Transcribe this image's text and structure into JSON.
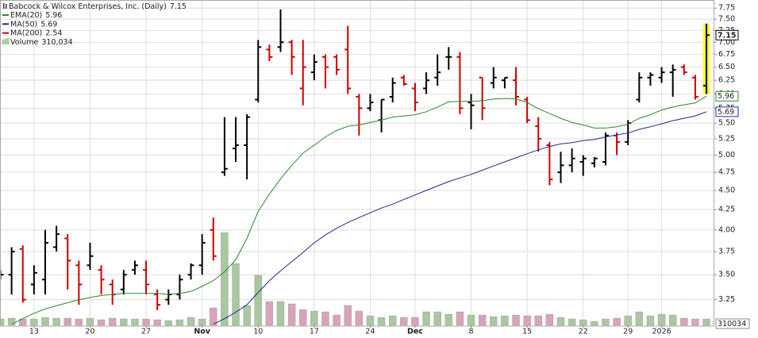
{
  "chart_data": {
    "type": "ohlc",
    "title": "Babcock & Wilcox Enterprises, Inc. (Daily)",
    "log_scale": true,
    "grid": true,
    "legend": "top-left",
    "ylim": [
      3.01,
      7.94
    ],
    "yticks": [
      3.25,
      {
        "value": 3.5,
        "label": "3.50"
      },
      3.75,
      {
        "value": 4,
        "label": "4.00"
      },
      4.25,
      {
        "value": 4.5,
        "label": "4.50"
      },
      4.75,
      {
        "value": 5,
        "label": "5.00"
      },
      5.25,
      {
        "value": 5.5,
        "label": "5.50"
      },
      5.75,
      {
        "value": 6,
        "label": "6.00"
      },
      6.25,
      {
        "value": 6.5,
        "label": "6.50"
      },
      6.75,
      {
        "value": 7,
        "label": "7.00"
      },
      7.25,
      {
        "value": 7.5,
        "label": "7.50"
      },
      7.75
    ],
    "categories": [
      null,
      null,
      null,
      "13",
      null,
      null,
      null,
      null,
      "20",
      null,
      null,
      null,
      null,
      "27",
      null,
      null,
      null,
      null,
      "Nov",
      null,
      null,
      null,
      null,
      "10",
      null,
      null,
      null,
      null,
      "17",
      null,
      null,
      null,
      null,
      "24",
      null,
      null,
      null,
      "Dec",
      null,
      null,
      null,
      null,
      "8",
      null,
      null,
      null,
      null,
      "15",
      null,
      null,
      null,
      null,
      "22",
      null,
      null,
      null,
      "29",
      null,
      null,
      "2026",
      null,
      null,
      null,
      null
    ],
    "up_color": "#000000",
    "down_color": "#cc0000",
    "highlight_color": "#ffff33",
    "ohlc": {
      "open": [
        3.5,
        3.5,
        3.78,
        3.4,
        3.45,
        3.8,
        3.9,
        3.6,
        3.6,
        3.55,
        3.4,
        3.35,
        3.55,
        3.55,
        3.3,
        3.25,
        3.3,
        3.5,
        3.6,
        4.0,
        4.75,
        5.1,
        5.15,
        5.9,
        6.85,
        6.9,
        7.0,
        6.1,
        6.4,
        6.7,
        6.7,
        6.85,
        5.95,
        5.75,
        5.55,
        5.95,
        6.3,
        6.1,
        6.1,
        6.3,
        6.7,
        6.7,
        5.85,
        6.3,
        6.2,
        6.25,
        6.25,
        5.9,
        5.45,
        5.15,
        4.75,
        4.85,
        4.9,
        4.88,
        4.9,
        5.3,
        5.2,
        5.9,
        6.3,
        6.3,
        6.4,
        6.5,
        6.3,
        6.15
      ],
      "high": [
        3.55,
        3.8,
        3.82,
        3.6,
        4.0,
        4.05,
        3.95,
        3.65,
        3.85,
        3.6,
        3.45,
        3.55,
        3.65,
        3.65,
        3.35,
        3.35,
        3.5,
        3.62,
        3.95,
        4.15,
        5.6,
        5.6,
        5.65,
        7.05,
        6.95,
        7.72,
        7.05,
        7.05,
        6.75,
        6.75,
        6.75,
        7.35,
        6.0,
        6.0,
        5.9,
        6.3,
        6.35,
        6.2,
        6.4,
        6.75,
        6.9,
        6.8,
        6.0,
        6.3,
        6.5,
        6.3,
        6.5,
        5.95,
        5.6,
        5.2,
        5.05,
        5.1,
        5.0,
        4.97,
        5.35,
        5.35,
        5.55,
        6.4,
        6.4,
        6.5,
        6.55,
        6.55,
        6.35,
        7.4
      ],
      "low": [
        3.45,
        3.3,
        3.22,
        3.3,
        3.3,
        3.75,
        3.35,
        3.2,
        3.55,
        3.3,
        3.2,
        3.3,
        3.5,
        3.3,
        3.15,
        3.2,
        3.25,
        3.45,
        3.5,
        3.65,
        4.7,
        4.9,
        4.65,
        5.85,
        6.62,
        6.8,
        6.35,
        5.8,
        6.25,
        6.1,
        6.35,
        6.0,
        5.3,
        5.7,
        5.35,
        5.85,
        6.15,
        5.7,
        6.0,
        6.15,
        6.45,
        5.65,
        5.4,
        5.55,
        6.1,
        6.1,
        5.8,
        5.5,
        5.05,
        4.57,
        4.6,
        4.75,
        4.7,
        4.82,
        4.85,
        5.0,
        5.15,
        5.85,
        6.15,
        6.2,
        5.95,
        6.35,
        5.9,
        6.0
      ],
      "close": [
        3.5,
        3.75,
        3.25,
        3.52,
        3.85,
        3.95,
        3.65,
        3.4,
        3.7,
        3.45,
        3.3,
        3.5,
        3.6,
        3.4,
        3.2,
        3.3,
        3.45,
        3.6,
        3.85,
        3.7,
        4.8,
        5.15,
        5.6,
        6.9,
        6.7,
        7.0,
        6.7,
        6.5,
        6.6,
        6.5,
        6.45,
        6.1,
        5.75,
        5.85,
        5.9,
        6.2,
        6.18,
        5.85,
        6.25,
        6.4,
        6.7,
        5.75,
        5.8,
        5.75,
        6.3,
        6.3,
        5.95,
        5.55,
        5.25,
        4.65,
        4.85,
        4.95,
        4.95,
        4.95,
        5.3,
        5.2,
        5.5,
        6.3,
        6.35,
        6.4,
        6.45,
        6.4,
        5.95,
        7.15
      ]
    },
    "series": [
      {
        "name": "EMA(20)",
        "color": "#2a8a2a",
        "values": [
          null,
          3.02,
          3.07,
          3.12,
          3.16,
          3.19,
          3.22,
          3.25,
          3.27,
          3.29,
          3.3,
          3.31,
          3.31,
          3.31,
          3.31,
          3.3,
          3.31,
          3.33,
          3.38,
          3.44,
          3.53,
          3.66,
          3.9,
          4.23,
          4.45,
          4.66,
          4.85,
          5.03,
          5.15,
          5.28,
          5.38,
          5.45,
          5.47,
          5.51,
          5.55,
          5.6,
          5.62,
          5.64,
          5.69,
          5.77,
          5.86,
          5.87,
          5.87,
          5.88,
          5.91,
          5.92,
          5.91,
          5.85,
          5.74,
          5.66,
          5.58,
          5.51,
          5.47,
          5.42,
          5.42,
          5.44,
          5.48,
          5.58,
          5.64,
          5.72,
          5.77,
          5.81,
          5.84,
          5.96
        ]
      },
      {
        "name": "MA(50)",
        "color": "#1f2a8c",
        "values": [
          null,
          null,
          null,
          null,
          null,
          null,
          null,
          null,
          null,
          null,
          null,
          null,
          null,
          null,
          null,
          null,
          null,
          null,
          null,
          3.02,
          3.07,
          3.13,
          3.2,
          3.32,
          3.44,
          3.54,
          3.64,
          3.74,
          3.85,
          3.94,
          4.02,
          4.09,
          4.15,
          4.21,
          4.27,
          4.32,
          4.38,
          4.44,
          4.5,
          4.56,
          4.62,
          4.67,
          4.72,
          4.78,
          4.84,
          4.9,
          4.96,
          5.02,
          5.08,
          5.13,
          5.17,
          5.19,
          5.22,
          5.24,
          5.28,
          5.31,
          5.34,
          5.4,
          5.44,
          5.49,
          5.54,
          5.58,
          5.62,
          5.69
        ]
      },
      {
        "name": "MA(200)",
        "color": "#cc0000",
        "last_value": 2.54
      }
    ],
    "volume_name": "Volume",
    "volume_legend_label": "310,034",
    "volume_up_color": "#a9c7a0",
    "volume_down_color": "#d9a3b8",
    "volume_ylim": [
      0,
      16000000
    ],
    "volume": [
      312000,
      351000,
      312000,
      312000,
      390000,
      351000,
      351000,
      312000,
      351000,
      273000,
      351000,
      312000,
      312000,
      312000,
      273000,
      234000,
      273000,
      390000,
      312000,
      859000,
      4566000,
      3044000,
      976000,
      2459000,
      1171000,
      1171000,
      1054000,
      780000,
      702000,
      663000,
      507000,
      976000,
      702000,
      468000,
      390000,
      468000,
      390000,
      390000,
      663000,
      663000,
      546000,
      663000,
      507000,
      507000,
      429000,
      468000,
      507000,
      468000,
      468000,
      546000,
      390000,
      312000,
      273000,
      195000,
      312000,
      351000,
      468000,
      663000,
      468000,
      546000,
      507000,
      351000,
      312000,
      310034
    ]
  }
}
